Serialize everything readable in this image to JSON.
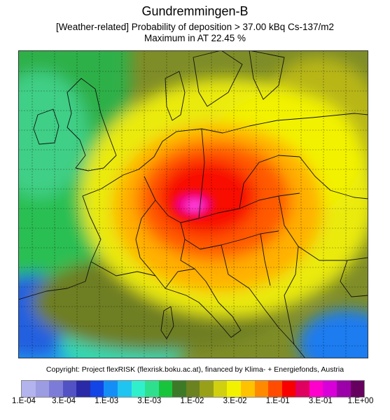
{
  "header": {
    "title": "Gundremmingen-B",
    "subtitle": "[Weather-related] Probability of deposition >  37.00 kBq Cs-137/m2",
    "maximum": "Maximum in AT  22.45 %"
  },
  "footer": {
    "copyright": "Copyright: Project flexRISK (flexrisk.boku.ac.at), financed by Klima- + Energiefonds, Austria"
  },
  "legend": {
    "tick_labels": [
      "1.E-04",
      "3.E-04",
      "1.E-03",
      "3.E-03",
      "1.E-02",
      "3.E-02",
      "1.E-01",
      "3.E-01",
      "1.E+00"
    ],
    "colors": [
      "#b3b3ee",
      "#9c9ce3",
      "#7c7cd8",
      "#5252c4",
      "#2a2aa8",
      "#1244e6",
      "#148ef6",
      "#20c4f0",
      "#30f0cc",
      "#2ee08e",
      "#18c43c",
      "#3c7a28",
      "#6a8220",
      "#98a018",
      "#d0d010",
      "#f2f200",
      "#ffc200",
      "#ff8a00",
      "#ff4c00",
      "#f80000",
      "#e00060",
      "#ff00cc",
      "#d800d8",
      "#9c00a8",
      "#66005e"
    ]
  },
  "map": {
    "source_location": "Gundremmingen-B",
    "max_region": "AT",
    "max_value_percent": 22.45
  }
}
